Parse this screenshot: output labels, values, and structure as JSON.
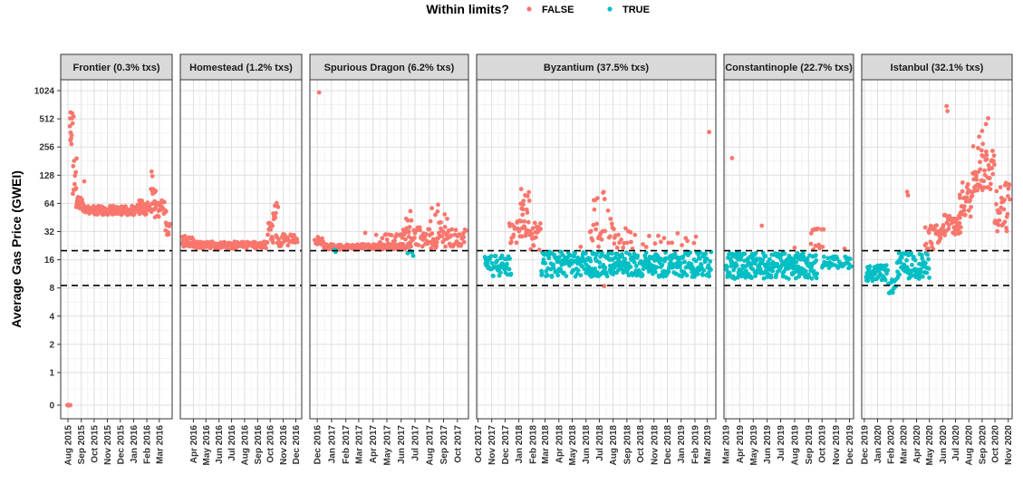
{
  "chart_data": {
    "type": "scatter",
    "ylabel": "Average Gas Price (GWEI)",
    "y_scale": "log",
    "yticks": [
      {
        "label": "1024",
        "value": 1024
      },
      {
        "label": "512",
        "value": 512
      },
      {
        "label": "256",
        "value": 256
      },
      {
        "label": "128",
        "value": 128
      },
      {
        "label": "64",
        "value": 64
      },
      {
        "label": "32",
        "value": 32
      },
      {
        "label": "16",
        "value": 16
      },
      {
        "label": "8",
        "value": 8
      },
      {
        "label": "4",
        "value": 4
      },
      {
        "label": "2",
        "value": 2
      },
      {
        "label": "1",
        "value": 1
      },
      {
        "label": "0",
        "value": 0
      }
    ],
    "reference_lines": [
      20,
      8.5
    ],
    "legend": {
      "title": "Within limits?",
      "position": "top",
      "entries": [
        {
          "label": "FALSE",
          "color": "#F8766D"
        },
        {
          "label": "TRUE",
          "color": "#00BFC4"
        }
      ]
    },
    "panels": [
      {
        "title": "Frontier (0.3% txs)",
        "xlim": [
          "2015-07-15",
          "2016-03-31"
        ],
        "xticks": [
          "Aug 2015",
          "Sep 2015",
          "Oct 2015",
          "Nov 2015",
          "Dec 2015",
          "Jan 2016",
          "Feb 2016",
          "Mar 2016"
        ],
        "segments": [
          {
            "start": "2015-07-30",
            "end": "2015-08-07",
            "low": 0,
            "high": 0,
            "cls": "FALSE",
            "n": 6
          },
          {
            "start": "2015-08-05",
            "end": "2015-08-12",
            "low": 250,
            "high": 600,
            "cls": "FALSE",
            "n": 10
          },
          {
            "start": "2015-08-12",
            "end": "2015-08-22",
            "low": 80,
            "high": 200,
            "cls": "FALSE",
            "n": 10
          },
          {
            "start": "2015-08-20",
            "end": "2015-09-05",
            "low": 55,
            "high": 75,
            "cls": "FALSE",
            "n": 16
          },
          {
            "start": "2015-09-05",
            "end": "2016-01-31",
            "low": 48,
            "high": 60,
            "cls": "FALSE",
            "n": 150
          },
          {
            "start": "2016-01-10",
            "end": "2016-02-20",
            "low": 52,
            "high": 70,
            "cls": "FALSE",
            "n": 30
          },
          {
            "start": "2016-02-10",
            "end": "2016-02-22",
            "low": 70,
            "high": 95,
            "cls": "FALSE",
            "n": 6
          },
          {
            "start": "2016-02-20",
            "end": "2016-03-18",
            "low": 45,
            "high": 70,
            "cls": "FALSE",
            "n": 25
          },
          {
            "start": "2016-03-15",
            "end": "2016-03-26",
            "low": 28,
            "high": 42,
            "cls": "FALSE",
            "n": 8
          }
        ],
        "points": [
          {
            "date": "2015-08-07",
            "value": 600,
            "cls": "FALSE"
          },
          {
            "date": "2015-08-14",
            "value": 540,
            "cls": "FALSE"
          },
          {
            "date": "2015-09-08",
            "value": 110,
            "cls": "FALSE"
          },
          {
            "date": "2016-02-12",
            "value": 140,
            "cls": "FALSE"
          },
          {
            "date": "2016-02-14",
            "value": 125,
            "cls": "FALSE"
          }
        ]
      },
      {
        "title": "Homestead (1.2% txs)",
        "xlim": [
          "2016-03-01",
          "2016-12-15"
        ],
        "xticks": [
          "Apr 2016",
          "May 2016",
          "Jun 2016",
          "Jul 2016",
          "Aug 2016",
          "Sep 2016",
          "Oct 2016",
          "Nov 2016",
          "Dec 2016"
        ],
        "segments": [
          {
            "start": "2016-03-05",
            "end": "2016-04-01",
            "low": 22,
            "high": 29,
            "cls": "FALSE",
            "n": 22
          },
          {
            "start": "2016-04-01",
            "end": "2016-09-25",
            "low": 21,
            "high": 25,
            "cls": "FALSE",
            "n": 150
          },
          {
            "start": "2016-09-25",
            "end": "2016-10-10",
            "low": 24,
            "high": 45,
            "cls": "FALSE",
            "n": 14
          },
          {
            "start": "2016-10-08",
            "end": "2016-10-20",
            "low": 45,
            "high": 75,
            "cls": "FALSE",
            "n": 8
          },
          {
            "start": "2016-10-15",
            "end": "2016-12-05",
            "low": 22,
            "high": 30,
            "cls": "FALSE",
            "n": 35
          }
        ],
        "points": []
      },
      {
        "title": "Spurious Dragon (6.2% txs)",
        "xlim": [
          "2016-11-15",
          "2017-10-25"
        ],
        "xticks": [
          "Dec 2016",
          "Jan 2017",
          "Feb 2017",
          "Mar 2017",
          "Apr 2017",
          "May 2017",
          "Jun 2017",
          "Jul 2017",
          "Aug 2017",
          "Sep 2017",
          "Oct 2017"
        ],
        "segments": [
          {
            "start": "2016-11-25",
            "end": "2016-12-15",
            "low": 22,
            "high": 29,
            "cls": "FALSE",
            "n": 14
          },
          {
            "start": "2016-12-15",
            "end": "2017-06-10",
            "low": 20.5,
            "high": 23.5,
            "cls": "FALSE",
            "n": 170
          },
          {
            "start": "2017-01-05",
            "end": "2017-01-12",
            "low": 19,
            "high": 20.5,
            "cls": "TRUE",
            "n": 3
          },
          {
            "start": "2017-04-01",
            "end": "2017-06-20",
            "low": 21,
            "high": 30,
            "cls": "FALSE",
            "n": 30
          },
          {
            "start": "2017-06-05",
            "end": "2017-06-25",
            "low": 30,
            "high": 58,
            "cls": "FALSE",
            "n": 10
          },
          {
            "start": "2017-06-15",
            "end": "2017-06-30",
            "low": 17.5,
            "high": 20,
            "cls": "TRUE",
            "n": 4
          },
          {
            "start": "2017-06-15",
            "end": "2017-10-20",
            "low": 21,
            "high": 36,
            "cls": "FALSE",
            "n": 90
          },
          {
            "start": "2017-08-01",
            "end": "2017-09-10",
            "low": 35,
            "high": 60,
            "cls": "FALSE",
            "n": 8
          }
        ],
        "points": [
          {
            "date": "2016-12-05",
            "value": 980,
            "cls": "FALSE"
          },
          {
            "date": "2017-03-15",
            "value": 31,
            "cls": "FALSE"
          },
          {
            "date": "2017-08-20",
            "value": 62,
            "cls": "FALSE"
          }
        ]
      },
      {
        "title": "Byzantium (37.5% txs)",
        "xlim": [
          "2017-09-28",
          "2019-03-20"
        ],
        "xticks": [
          "Oct 2017",
          "Nov 2017",
          "Dec 2017",
          "Jan 2018",
          "Feb 2018",
          "Mar 2018",
          "Apr 2018",
          "May 2018",
          "Jun 2018",
          "Jul 2018",
          "Aug 2018",
          "Sep 2018",
          "Oct 2018",
          "Nov 2018",
          "Dec 2018",
          "Jan 2019",
          "Feb 2019",
          "Mar 2019"
        ],
        "segments": [
          {
            "start": "2017-10-16",
            "end": "2017-12-15",
            "low": 10.5,
            "high": 18,
            "cls": "TRUE",
            "n": 50
          },
          {
            "start": "2017-12-10",
            "end": "2018-01-10",
            "low": 24,
            "high": 42,
            "cls": "FALSE",
            "n": 22
          },
          {
            "start": "2018-01-05",
            "end": "2018-01-25",
            "low": 28,
            "high": 95,
            "cls": "FALSE",
            "n": 22
          },
          {
            "start": "2018-01-25",
            "end": "2018-02-20",
            "low": 20,
            "high": 40,
            "cls": "FALSE",
            "n": 22
          },
          {
            "start": "2018-02-20",
            "end": "2019-03-10",
            "low": 10.5,
            "high": 19.5,
            "cls": "TRUE",
            "n": 380
          },
          {
            "start": "2018-06-10",
            "end": "2018-07-15",
            "low": 22,
            "high": 85,
            "cls": "FALSE",
            "n": 22
          },
          {
            "start": "2018-07-20",
            "end": "2018-08-05",
            "low": 25,
            "high": 55,
            "cls": "FALSE",
            "n": 8
          },
          {
            "start": "2018-08-01",
            "end": "2018-09-20",
            "low": 21,
            "high": 35,
            "cls": "FALSE",
            "n": 15
          },
          {
            "start": "2018-10-01",
            "end": "2019-02-10",
            "low": 21,
            "high": 32,
            "cls": "FALSE",
            "n": 15
          }
        ],
        "points": [
          {
            "date": "2018-07-12",
            "value": 8.4,
            "cls": "FALSE"
          },
          {
            "date": "2019-03-05",
            "value": 370,
            "cls": "FALSE"
          },
          {
            "date": "2018-05-20",
            "value": 22,
            "cls": "FALSE"
          }
        ]
      },
      {
        "title": "Constantinople (22.7% txs)",
        "xlim": [
          "2019-02-25",
          "2019-12-10"
        ],
        "xticks": [
          "Mar 2019",
          "Apr 2019",
          "May 2019",
          "Jun 2019",
          "Jul 2019",
          "Aug 2019",
          "Sep 2019",
          "Oct 2019",
          "Nov 2019",
          "Dec 2019"
        ],
        "segments": [
          {
            "start": "2019-03-01",
            "end": "2019-09-20",
            "low": 10,
            "high": 19,
            "cls": "TRUE",
            "n": 260
          },
          {
            "start": "2019-09-05",
            "end": "2019-10-05",
            "low": 20.5,
            "high": 35,
            "cls": "FALSE",
            "n": 16
          },
          {
            "start": "2019-10-01",
            "end": "2019-12-05",
            "low": 13,
            "high": 17.5,
            "cls": "TRUE",
            "n": 40
          }
        ],
        "points": [
          {
            "date": "2019-03-15",
            "value": 195,
            "cls": "FALSE"
          },
          {
            "date": "2019-05-20",
            "value": 37,
            "cls": "FALSE"
          },
          {
            "date": "2019-08-01",
            "value": 21.5,
            "cls": "FALSE"
          },
          {
            "date": "2019-11-20",
            "value": 21,
            "cls": "FALSE"
          }
        ]
      },
      {
        "title": "Istanbul (32.1% txs)",
        "xlim": [
          "2019-11-25",
          "2020-11-10"
        ],
        "xticks": [
          "Dec 2019",
          "Jan 2020",
          "Feb 2020",
          "Mar 2020",
          "Apr 2020",
          "May 2020",
          "Jun 2020",
          "Jul 2020",
          "Aug 2020",
          "Sep 2020",
          "Oct 2020",
          "Nov 2020"
        ],
        "segments": [
          {
            "start": "2019-12-05",
            "end": "2020-01-25",
            "low": 9.5,
            "high": 14,
            "cls": "TRUE",
            "n": 50
          },
          {
            "start": "2020-01-25",
            "end": "2020-02-15",
            "low": 7,
            "high": 10,
            "cls": "TRUE",
            "n": 12
          },
          {
            "start": "2020-02-15",
            "end": "2020-05-01",
            "low": 10,
            "high": 19,
            "cls": "TRUE",
            "n": 80
          },
          {
            "start": "2020-04-20",
            "end": "2020-06-01",
            "low": 20,
            "high": 38,
            "cls": "FALSE",
            "n": 30
          },
          {
            "start": "2020-06-01",
            "end": "2020-07-15",
            "low": 28,
            "high": 52,
            "cls": "FALSE",
            "n": 40
          },
          {
            "start": "2020-07-10",
            "end": "2020-08-10",
            "low": 45,
            "high": 110,
            "cls": "FALSE",
            "n": 30
          },
          {
            "start": "2020-08-10",
            "end": "2020-09-30",
            "low": 85,
            "high": 280,
            "cls": "FALSE",
            "n": 50
          },
          {
            "start": "2020-09-30",
            "end": "2020-11-05",
            "low": 32,
            "high": 110,
            "cls": "FALSE",
            "n": 35
          }
        ],
        "points": [
          {
            "date": "2020-03-10",
            "value": 85,
            "cls": "FALSE"
          },
          {
            "date": "2020-03-12",
            "value": 78,
            "cls": "FALSE"
          },
          {
            "date": "2020-06-10",
            "value": 700,
            "cls": "FALSE"
          },
          {
            "date": "2020-06-12",
            "value": 620,
            "cls": "FALSE"
          },
          {
            "date": "2020-09-01",
            "value": 380,
            "cls": "FALSE"
          },
          {
            "date": "2020-09-10",
            "value": 450,
            "cls": "FALSE"
          },
          {
            "date": "2020-09-15",
            "value": 520,
            "cls": "FALSE"
          },
          {
            "date": "2020-08-25",
            "value": 330,
            "cls": "FALSE"
          }
        ]
      }
    ]
  }
}
